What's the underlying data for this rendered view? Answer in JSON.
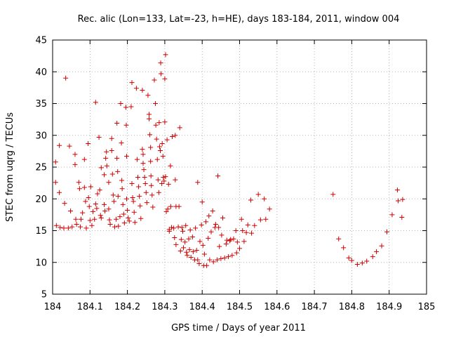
{
  "chart_data": {
    "type": "scatter",
    "title": "Rec. alic (Lon=133, Lat=-23, h=HE), days 183-184, 2011, window 004",
    "xlabel": "GPS time / Days of year 2011",
    "ylabel": "STEC from uqrg / TECUs",
    "xlim": [
      184,
      185
    ],
    "ylim": [
      5,
      45
    ],
    "xticks": [
      184,
      184.1,
      184.2,
      184.3,
      184.4,
      184.5,
      184.6,
      184.7,
      184.8,
      184.9,
      185
    ],
    "xtick_labels": [
      "184",
      "184.1",
      "184.2",
      "184.3",
      "184.4",
      "184.5",
      "184.6",
      "184.7",
      "184.8",
      "184.9",
      "185"
    ],
    "yticks": [
      5,
      10,
      15,
      20,
      25,
      30,
      35,
      40,
      45
    ],
    "ytick_labels": [
      "5",
      "10",
      "15",
      "20",
      "25",
      "30",
      "35",
      "40",
      "45"
    ],
    "grid": true,
    "marker": "plus",
    "color": "#d00000",
    "points": [
      [
        184.008,
        25.8
      ],
      [
        184.008,
        22.6
      ],
      [
        184.01,
        15.8
      ],
      [
        184.018,
        28.4
      ],
      [
        184.018,
        21.0
      ],
      [
        184.02,
        15.5
      ],
      [
        184.03,
        15.4
      ],
      [
        184.032,
        19.3
      ],
      [
        184.035,
        39.0
      ],
      [
        184.042,
        15.4
      ],
      [
        184.045,
        28.3
      ],
      [
        184.048,
        18.1
      ],
      [
        184.052,
        15.6
      ],
      [
        184.06,
        27.0
      ],
      [
        184.06,
        25.4
      ],
      [
        184.062,
        16.8
      ],
      [
        184.064,
        16.0
      ],
      [
        184.07,
        22.6
      ],
      [
        184.072,
        21.6
      ],
      [
        184.074,
        15.6
      ],
      [
        184.076,
        16.8
      ],
      [
        184.08,
        17.8
      ],
      [
        184.085,
        26.2
      ],
      [
        184.085,
        21.8
      ],
      [
        184.088,
        19.6
      ],
      [
        184.09,
        15.4
      ],
      [
        184.095,
        28.7
      ],
      [
        184.096,
        20.2
      ],
      [
        184.098,
        18.8
      ],
      [
        184.1,
        16.6
      ],
      [
        184.102,
        21.9
      ],
      [
        184.105,
        15.8
      ],
      [
        184.108,
        18.0
      ],
      [
        184.112,
        16.8
      ],
      [
        184.115,
        35.2
      ],
      [
        184.115,
        19.2
      ],
      [
        184.118,
        18.5
      ],
      [
        184.12,
        20.8
      ],
      [
        184.124,
        29.7
      ],
      [
        184.126,
        21.4
      ],
      [
        184.128,
        17.4
      ],
      [
        184.13,
        24.9
      ],
      [
        184.13,
        17.0
      ],
      [
        184.138,
        23.8
      ],
      [
        184.138,
        19.1
      ],
      [
        184.14,
        18.1
      ],
      [
        184.142,
        26.4
      ],
      [
        184.144,
        27.4
      ],
      [
        184.145,
        25.2
      ],
      [
        184.15,
        22.6
      ],
      [
        184.15,
        18.4
      ],
      [
        184.152,
        16.7
      ],
      [
        184.154,
        16.0
      ],
      [
        184.158,
        29.5
      ],
      [
        184.158,
        27.6
      ],
      [
        184.16,
        23.9
      ],
      [
        184.162,
        20.6
      ],
      [
        184.164,
        19.6
      ],
      [
        184.166,
        15.6
      ],
      [
        184.17,
        16.8
      ],
      [
        184.172,
        31.9
      ],
      [
        184.172,
        26.4
      ],
      [
        184.174,
        24.3
      ],
      [
        184.175,
        20.4
      ],
      [
        184.176,
        15.7
      ],
      [
        184.18,
        17.2
      ],
      [
        184.182,
        35.0
      ],
      [
        184.184,
        28.8
      ],
      [
        184.185,
        22.9
      ],
      [
        184.186,
        21.6
      ],
      [
        184.188,
        19.1
      ],
      [
        184.19,
        17.6
      ],
      [
        184.192,
        16.2
      ],
      [
        184.196,
        34.4
      ],
      [
        184.197,
        31.6
      ],
      [
        184.198,
        26.7
      ],
      [
        184.198,
        20.0
      ],
      [
        184.2,
        18.2
      ],
      [
        184.202,
        17.0
      ],
      [
        184.205,
        16.5
      ],
      [
        184.21,
        34.5
      ],
      [
        184.212,
        38.3
      ],
      [
        184.212,
        22.4
      ],
      [
        184.214,
        20.2
      ],
      [
        184.216,
        19.6
      ],
      [
        184.218,
        17.9
      ],
      [
        184.22,
        16.3
      ],
      [
        184.224,
        37.4
      ],
      [
        184.226,
        26.2
      ],
      [
        184.228,
        23.4
      ],
      [
        184.23,
        21.9
      ],
      [
        184.232,
        20.4
      ],
      [
        184.234,
        18.9
      ],
      [
        184.236,
        16.9
      ],
      [
        184.24,
        37.1
      ],
      [
        184.24,
        27.8
      ],
      [
        184.242,
        27.0
      ],
      [
        184.242,
        25.6
      ],
      [
        184.244,
        24.6
      ],
      [
        184.246,
        23.4
      ],
      [
        184.248,
        22.4
      ],
      [
        184.25,
        21.0
      ],
      [
        184.252,
        19.4
      ],
      [
        184.255,
        36.3
      ],
      [
        184.258,
        33.3
      ],
      [
        184.258,
        32.6
      ],
      [
        184.26,
        30.1
      ],
      [
        184.262,
        28.1
      ],
      [
        184.262,
        25.9
      ],
      [
        184.263,
        23.6
      ],
      [
        184.264,
        22.1
      ],
      [
        184.266,
        20.6
      ],
      [
        184.268,
        18.7
      ],
      [
        184.272,
        38.7
      ],
      [
        184.275,
        35.0
      ],
      [
        184.276,
        31.6
      ],
      [
        184.278,
        29.4
      ],
      [
        184.28,
        26.2
      ],
      [
        184.282,
        23.0
      ],
      [
        184.284,
        21.0
      ],
      [
        184.285,
        32.0
      ],
      [
        184.286,
        28.2
      ],
      [
        184.288,
        27.6
      ],
      [
        184.289,
        41.4
      ],
      [
        184.29,
        39.7
      ],
      [
        184.292,
        22.4
      ],
      [
        184.293,
        28.7
      ],
      [
        184.295,
        26.7
      ],
      [
        184.296,
        23.4
      ],
      [
        184.298,
        22.8
      ],
      [
        184.3,
        38.9
      ],
      [
        184.3,
        32.1
      ],
      [
        184.302,
        42.7
      ],
      [
        184.302,
        23.5
      ],
      [
        184.304,
        18.0
      ],
      [
        184.306,
        29.3
      ],
      [
        184.308,
        18.4
      ],
      [
        184.31,
        22.3
      ],
      [
        184.312,
        15.2
      ],
      [
        184.312,
        14.9
      ],
      [
        184.315,
        25.2
      ],
      [
        184.316,
        18.8
      ],
      [
        184.318,
        15.5
      ],
      [
        184.32,
        29.8
      ],
      [
        184.324,
        15.4
      ],
      [
        184.326,
        13.9
      ],
      [
        184.328,
        30.0
      ],
      [
        184.328,
        23.0
      ],
      [
        184.33,
        18.8
      ],
      [
        184.33,
        12.8
      ],
      [
        184.336,
        15.6
      ],
      [
        184.338,
        18.8
      ],
      [
        184.34,
        31.2
      ],
      [
        184.342,
        11.8
      ],
      [
        184.344,
        13.6
      ],
      [
        184.346,
        15.5
      ],
      [
        184.348,
        14.9
      ],
      [
        184.35,
        12.3
      ],
      [
        184.354,
        13.2
      ],
      [
        184.356,
        15.8
      ],
      [
        184.358,
        11.6
      ],
      [
        184.36,
        11.1
      ],
      [
        184.364,
        13.7
      ],
      [
        184.366,
        12.0
      ],
      [
        184.368,
        15.1
      ],
      [
        184.37,
        10.8
      ],
      [
        184.374,
        14.0
      ],
      [
        184.376,
        11.7
      ],
      [
        184.38,
        10.4
      ],
      [
        184.382,
        15.4
      ],
      [
        184.385,
        11.9
      ],
      [
        184.388,
        22.6
      ],
      [
        184.388,
        10.4
      ],
      [
        184.392,
        9.8
      ],
      [
        184.394,
        13.3
      ],
      [
        184.398,
        15.9
      ],
      [
        184.4,
        19.5
      ],
      [
        184.402,
        12.7
      ],
      [
        184.404,
        9.5
      ],
      [
        184.406,
        11.3
      ],
      [
        184.41,
        16.4
      ],
      [
        184.412,
        9.5
      ],
      [
        184.416,
        13.8
      ],
      [
        184.418,
        17.3
      ],
      [
        184.42,
        10.4
      ],
      [
        184.424,
        14.8
      ],
      [
        184.428,
        18.1
      ],
      [
        184.43,
        10.1
      ],
      [
        184.434,
        15.5
      ],
      [
        184.436,
        16.0
      ],
      [
        184.44,
        10.4
      ],
      [
        184.442,
        23.6
      ],
      [
        184.444,
        15.5
      ],
      [
        184.446,
        12.5
      ],
      [
        184.45,
        10.6
      ],
      [
        184.452,
        14.3
      ],
      [
        184.455,
        17.0
      ],
      [
        184.46,
        10.7
      ],
      [
        184.464,
        12.9
      ],
      [
        184.466,
        13.5
      ],
      [
        184.47,
        10.9
      ],
      [
        184.474,
        13.4
      ],
      [
        184.476,
        13.6
      ],
      [
        184.48,
        11.1
      ],
      [
        184.484,
        13.7
      ],
      [
        184.49,
        15.0
      ],
      [
        184.492,
        11.5
      ],
      [
        184.494,
        13.2
      ],
      [
        184.5,
        12.2
      ],
      [
        184.505,
        16.8
      ],
      [
        184.508,
        15.0
      ],
      [
        184.512,
        13.3
      ],
      [
        184.518,
        14.7
      ],
      [
        184.522,
        15.9
      ],
      [
        184.53,
        19.8
      ],
      [
        184.532,
        14.6
      ],
      [
        184.54,
        15.8
      ],
      [
        184.55,
        20.7
      ],
      [
        184.556,
        16.7
      ],
      [
        184.566,
        20.0
      ],
      [
        184.57,
        16.8
      ],
      [
        184.58,
        18.4
      ],
      [
        184.75,
        20.7
      ],
      [
        184.765,
        13.7
      ],
      [
        184.778,
        12.3
      ],
      [
        184.792,
        10.7
      ],
      [
        184.8,
        10.3
      ],
      [
        184.815,
        9.7
      ],
      [
        184.828,
        9.9
      ],
      [
        184.84,
        10.2
      ],
      [
        184.856,
        10.9
      ],
      [
        184.866,
        11.7
      ],
      [
        184.88,
        12.6
      ],
      [
        184.894,
        14.8
      ],
      [
        184.908,
        17.5
      ],
      [
        184.922,
        21.4
      ],
      [
        184.924,
        19.7
      ],
      [
        184.934,
        17.1
      ],
      [
        184.936,
        19.9
      ]
    ]
  }
}
